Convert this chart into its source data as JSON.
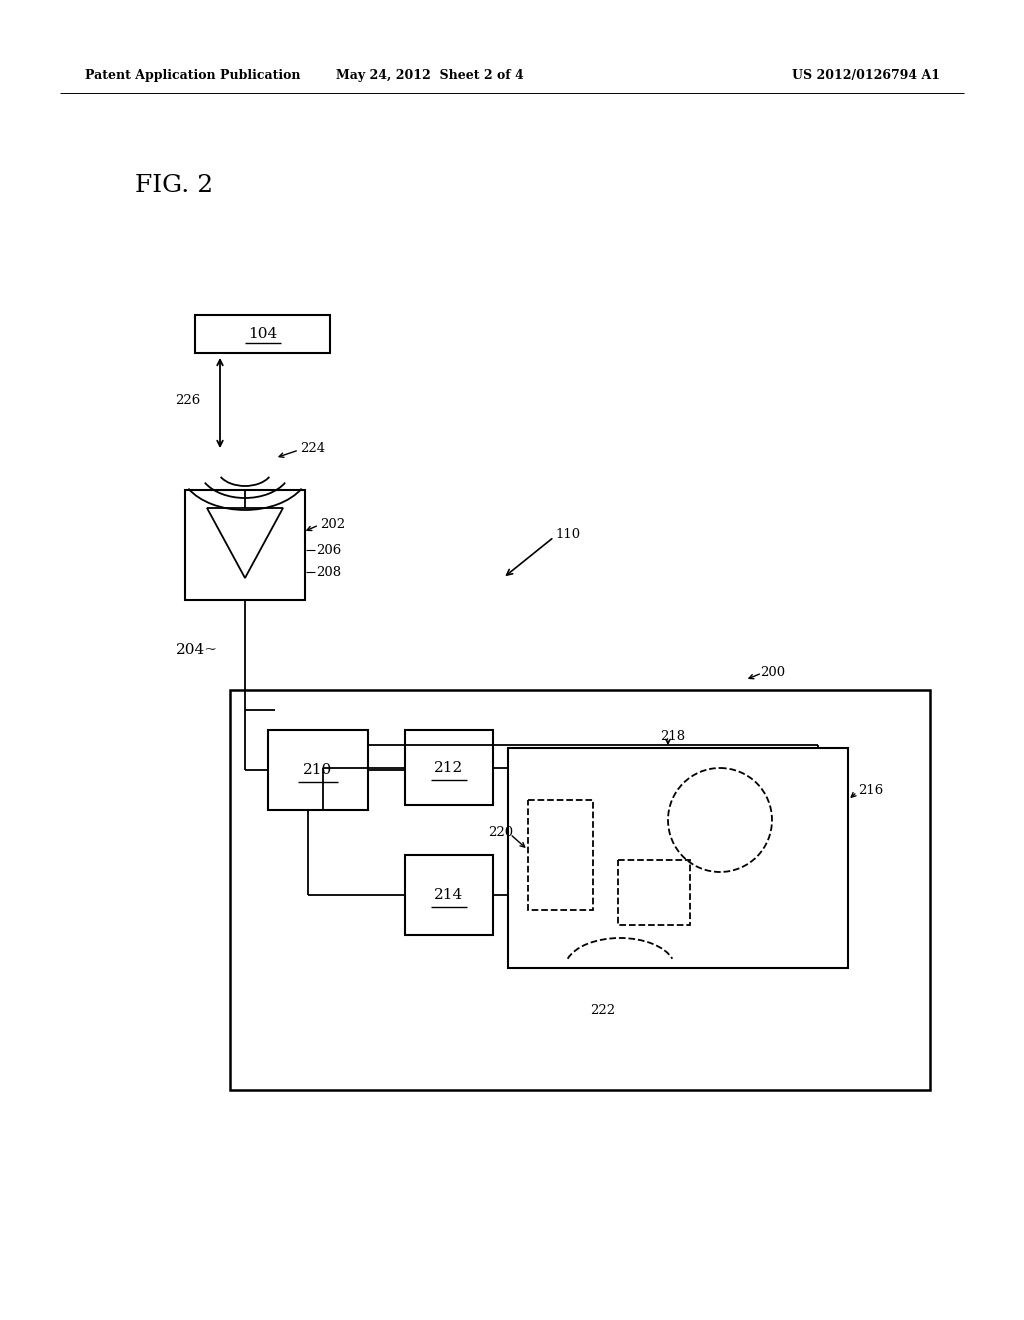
{
  "bg_color": "#ffffff",
  "title_left": "Patent Application Publication",
  "title_mid": "May 24, 2012  Sheet 2 of 4",
  "title_right": "US 2012/0126794 A1"
}
